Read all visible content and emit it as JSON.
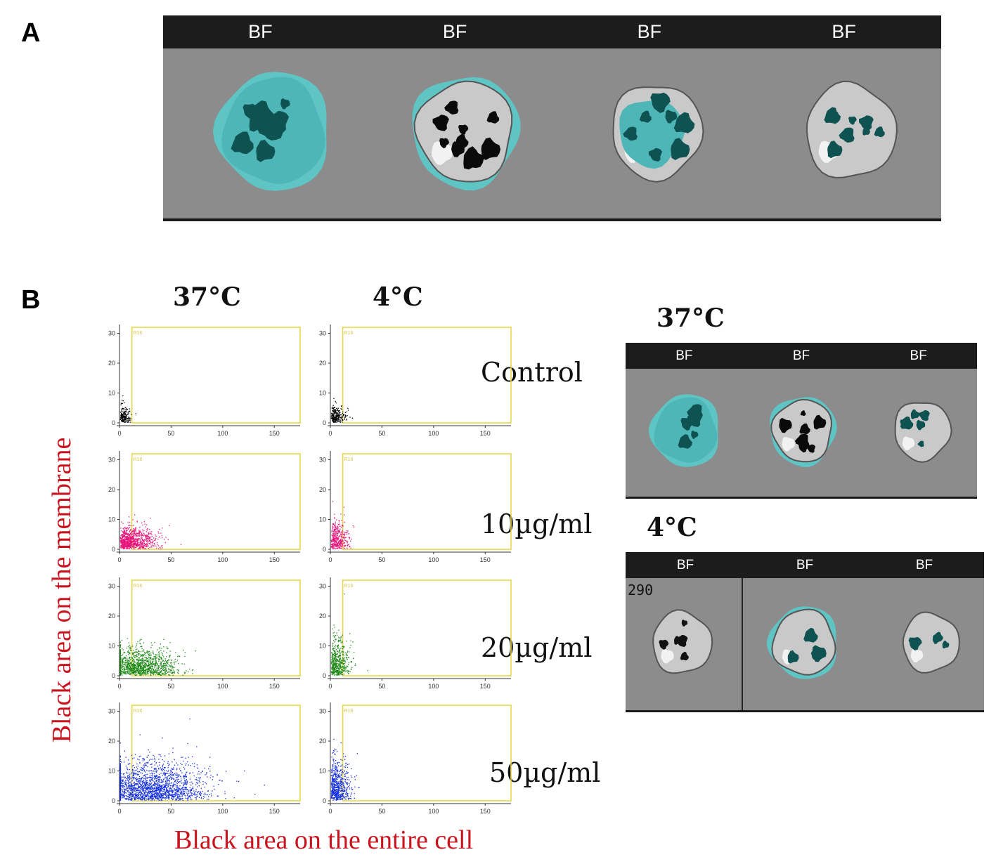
{
  "panel_a": {
    "letter": "A",
    "header_labels": [
      "BF",
      "BF",
      "BF",
      "BF"
    ]
  },
  "panel_b": {
    "letter": "B",
    "col_37": "37°C",
    "col_4": "4°C",
    "conditions": [
      "Control",
      "10µg/ml",
      "20µg/ml",
      "50µg/ml"
    ],
    "x_axis_title": "Black area on the entire cell",
    "y_axis_title": "Black area on the membrane",
    "gate_label": "R16",
    "image_37_title": "37°C",
    "image_37_labels": [
      "BF",
      "BF",
      "BF"
    ],
    "image_4_title": "4°C",
    "image_4_labels": [
      "BF",
      "BF",
      "BF"
    ],
    "image_4_index": "290"
  },
  "chart_data": [
    {
      "type": "scatter",
      "panel": "37°C Control",
      "color": "#000000",
      "xlim": [
        0,
        175
      ],
      "ylim": [
        0,
        32
      ],
      "xticks": [
        0,
        50,
        100,
        150
      ],
      "yticks": [
        0,
        10,
        20,
        30
      ],
      "gate": {
        "x": [
          12,
          175
        ],
        "y": [
          0,
          32
        ]
      },
      "cluster": {
        "x_mean": 6,
        "x_spread": 5,
        "y_mean": 3,
        "y_spread": 3,
        "n": 180
      }
    },
    {
      "type": "scatter",
      "panel": "4°C Control",
      "color": "#000000",
      "xlim": [
        0,
        175
      ],
      "ylim": [
        0,
        32
      ],
      "xticks": [
        0,
        50,
        100,
        150
      ],
      "yticks": [
        0,
        10,
        20,
        30
      ],
      "gate": {
        "x": [
          12,
          175
        ],
        "y": [
          0,
          32
        ]
      },
      "cluster": {
        "x_mean": 7,
        "x_spread": 7,
        "y_mean": 3,
        "y_spread": 3,
        "n": 240
      }
    },
    {
      "type": "scatter",
      "panel": "37°C 10µg/ml",
      "color": "#e8137a",
      "xlim": [
        0,
        175
      ],
      "ylim": [
        0,
        32
      ],
      "xticks": [
        0,
        50,
        100,
        150
      ],
      "yticks": [
        0,
        10,
        20,
        30
      ],
      "gate": {
        "x": [
          12,
          175
        ],
        "y": [
          0,
          32
        ]
      },
      "cluster": {
        "x_mean": 14,
        "x_spread": 17,
        "y_mean": 4,
        "y_spread": 4,
        "n": 900
      }
    },
    {
      "type": "scatter",
      "panel": "4°C 10µg/ml",
      "color": "#e8137a",
      "xlim": [
        0,
        175
      ],
      "ylim": [
        0,
        32
      ],
      "xticks": [
        0,
        50,
        100,
        150
      ],
      "yticks": [
        0,
        10,
        20,
        30
      ],
      "gate": {
        "x": [
          12,
          175
        ],
        "y": [
          0,
          32
        ]
      },
      "cluster": {
        "x_mean": 9,
        "x_spread": 8,
        "y_mean": 5,
        "y_spread": 5,
        "n": 380
      }
    },
    {
      "type": "scatter",
      "panel": "37°C 20µg/ml",
      "color": "#1f8a17",
      "xlim": [
        0,
        175
      ],
      "ylim": [
        0,
        32
      ],
      "xticks": [
        0,
        50,
        100,
        150
      ],
      "yticks": [
        0,
        10,
        20,
        30
      ],
      "gate": {
        "x": [
          12,
          175
        ],
        "y": [
          0,
          32
        ]
      },
      "cluster": {
        "x_mean": 30,
        "x_spread": 26,
        "y_mean": 5,
        "y_spread": 5,
        "n": 1300
      }
    },
    {
      "type": "scatter",
      "panel": "4°C 20µg/ml",
      "color": "#1f8a17",
      "xlim": [
        0,
        175
      ],
      "ylim": [
        0,
        32
      ],
      "xticks": [
        0,
        50,
        100,
        150
      ],
      "yticks": [
        0,
        10,
        20,
        30
      ],
      "gate": {
        "x": [
          12,
          175
        ],
        "y": [
          0,
          32
        ]
      },
      "cluster": {
        "x_mean": 12,
        "x_spread": 9,
        "y_mean": 7,
        "y_spread": 7,
        "n": 520
      }
    },
    {
      "type": "scatter",
      "panel": "37°C 50µg/ml",
      "color": "#1530e0",
      "xlim": [
        0,
        175
      ],
      "ylim": [
        0,
        32
      ],
      "xticks": [
        0,
        50,
        100,
        150
      ],
      "yticks": [
        0,
        10,
        20,
        30
      ],
      "gate": {
        "x": [
          12,
          175
        ],
        "y": [
          0,
          32
        ]
      },
      "cluster": {
        "x_mean": 50,
        "x_spread": 38,
        "y_mean": 6,
        "y_spread": 7,
        "n": 2000
      }
    },
    {
      "type": "scatter",
      "panel": "4°C 50µg/ml",
      "color": "#1530e0",
      "xlim": [
        0,
        175
      ],
      "ylim": [
        0,
        32
      ],
      "xticks": [
        0,
        50,
        100,
        150
      ],
      "yticks": [
        0,
        10,
        20,
        30
      ],
      "gate": {
        "x": [
          12,
          175
        ],
        "y": [
          0,
          32
        ]
      },
      "cluster": {
        "x_mean": 12,
        "x_spread": 9,
        "y_mean": 8,
        "y_spread": 8,
        "n": 600
      }
    }
  ]
}
